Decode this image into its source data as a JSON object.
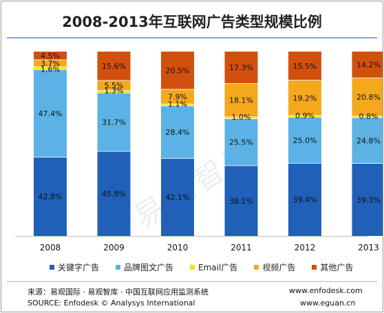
{
  "title": "2008-2013年互联网广告类型规模比例",
  "watermark": "易观智库",
  "chart_data": {
    "type": "bar",
    "stacked": true,
    "percent": true,
    "categories": [
      "2008",
      "2009",
      "2010",
      "2011",
      "2012",
      "2013"
    ],
    "series": [
      {
        "name": "关键字广告",
        "color": "#2060b8",
        "values": [
          42.8,
          45.8,
          42.1,
          38.1,
          39.4,
          39.3
        ]
      },
      {
        "name": "品牌图文广告",
        "color": "#5cb2e4",
        "values": [
          47.4,
          31.7,
          28.4,
          25.5,
          25.0,
          24.8
        ]
      },
      {
        "name": "Email广告",
        "color": "#f5e400",
        "values": [
          1.6,
          1.3,
          1.1,
          1.0,
          0.9,
          0.8
        ]
      },
      {
        "name": "视频广告",
        "color": "#f5a81c",
        "values": [
          3.7,
          5.5,
          7.9,
          18.1,
          19.2,
          20.8
        ]
      },
      {
        "name": "其他广告",
        "color": "#d2500e",
        "values": [
          4.5,
          15.6,
          20.5,
          17.3,
          15.5,
          14.2
        ]
      }
    ],
    "labels": [
      [
        "42.8%",
        "47.4%",
        "1.6%",
        "3.7%",
        "4.5%"
      ],
      [
        "45.8%",
        "31.7%",
        "1.3%",
        "5.5%",
        "15.6%"
      ],
      [
        "42.1%",
        "28.4%",
        "1.1%",
        "7.9%",
        "20.5%"
      ],
      [
        "38.1%",
        "25.5%",
        "1.0%",
        "18.1%",
        "17.3%"
      ],
      [
        "39.4%",
        "25.0%",
        "0.9%",
        "19.2%",
        "15.5%"
      ],
      [
        "39.3%",
        "24.8%",
        "0.8%",
        "20.8%",
        "14.2%"
      ]
    ],
    "legend_position": "bottom",
    "grid": false
  },
  "footer": {
    "source_cn": "来源：易观国际 · 易观智库 · 中国互联网应用监测系统",
    "source_en": "SOURCE: Enfodesk © Analysys International",
    "url1": "www.enfodesk.com",
    "url2": "www.eguan.cn"
  }
}
